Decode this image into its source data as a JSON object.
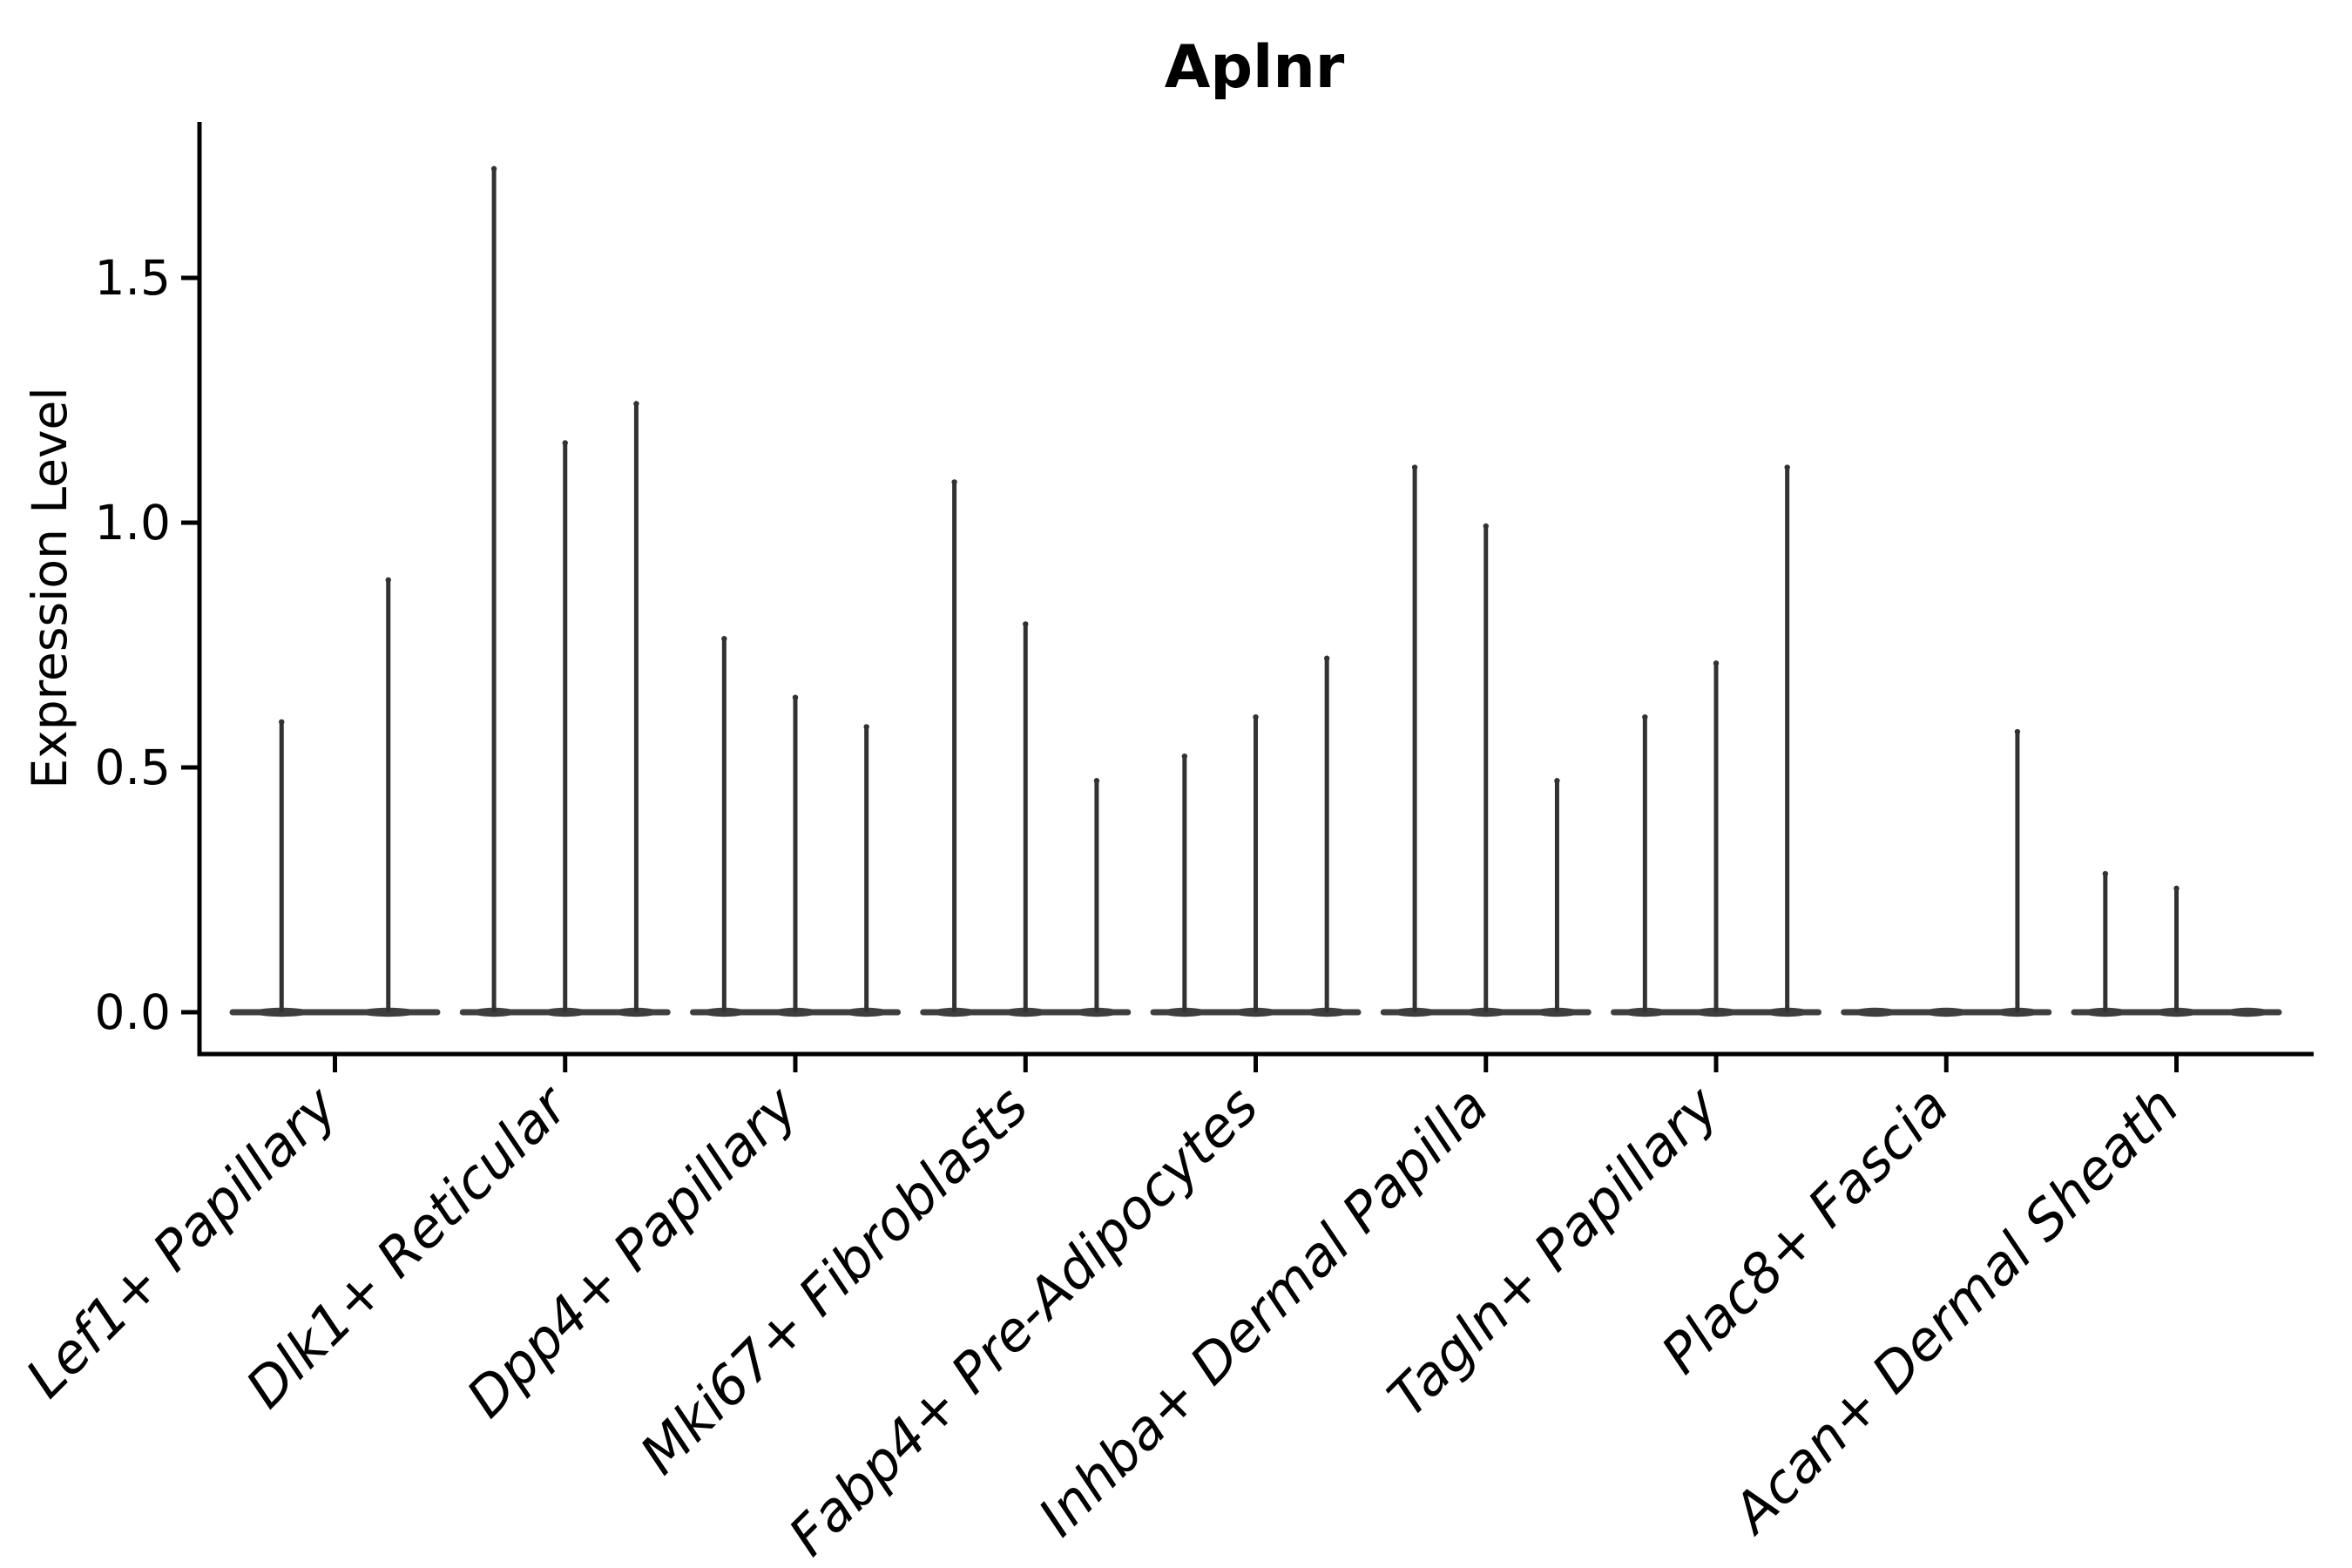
{
  "title": "Aplnr",
  "axes": {
    "ylabel": "Expression Level",
    "xlabel": ""
  },
  "chart_data": {
    "type": "violin",
    "title": "Aplnr",
    "xlabel": "",
    "ylabel": "Expression Level",
    "yticks": [
      0.0,
      0.5,
      1.0,
      1.5
    ],
    "ytick_labels": [
      "0.0",
      "0.5",
      "1.0",
      "1.5"
    ],
    "ylim": [
      -0.085,
      1.82
    ],
    "grid": false,
    "legend": null,
    "categories": [
      "Lef1+ Papillary",
      "Dlk1+ Reticular",
      "Dpp4+ Papillary",
      "Mki67+ Fibroblasts",
      "Fabp4+ Pre-Adipocytes",
      "Inhba+ Dermal Papilla",
      "Tagln+ Papillary",
      "Plac8+ Fascia",
      "Acan+ Dermal Sheath"
    ],
    "groups": [
      {
        "label": "Lef1+ Papillary",
        "violin_maxes": [
          0.6,
          0.89
        ]
      },
      {
        "label": "Dlk1+ Reticular",
        "violin_maxes": [
          1.73,
          1.17,
          1.25
        ]
      },
      {
        "label": "Dpp4+ Papillary",
        "violin_maxes": [
          0.77,
          0.65,
          0.59
        ]
      },
      {
        "label": "Mki67+ Fibroblasts",
        "violin_maxes": [
          1.09,
          0.8,
          0.48
        ]
      },
      {
        "label": "Fabp4+ Pre-Adipocytes",
        "violin_maxes": [
          0.53,
          0.61,
          0.73
        ]
      },
      {
        "label": "Inhba+ Dermal Papilla",
        "violin_maxes": [
          1.12,
          1.0,
          0.48
        ]
      },
      {
        "label": "Tagln+ Papillary",
        "violin_maxes": [
          0.61,
          0.72,
          1.12
        ]
      },
      {
        "label": "Plac8+ Fascia",
        "violin_maxes": [
          0.0,
          0.0,
          0.58
        ]
      },
      {
        "label": "Acan+ Dermal Sheath",
        "violin_maxes": [
          0.29,
          0.26,
          0.0
        ]
      }
    ],
    "style": {
      "violin_color": "#323232",
      "base_bar_color": "#3e3e3e",
      "axis_color": "#000000",
      "background": "#ffffff",
      "note": "Pencil-thin violins: each violin is a flat dark bar at expression 0 with a hair-thin vertical spike rising to the max expression value; zero-max violins show the flat bar only."
    }
  }
}
